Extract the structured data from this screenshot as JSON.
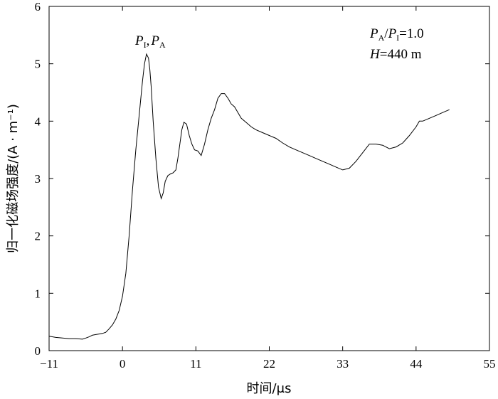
{
  "chart_data": {
    "type": "line",
    "xlabel": "时间/μs",
    "ylabel": "归一化磁场强度/(A · m⁻¹)",
    "xlim": [
      -11,
      55
    ],
    "ylim": [
      0,
      6
    ],
    "xticks": [
      -11,
      0,
      11,
      22,
      33,
      44,
      55
    ],
    "yticks": [
      0,
      1,
      2,
      3,
      4,
      5,
      6
    ],
    "xtick_labels": [
      "−11",
      "0",
      "11",
      "22",
      "33",
      "44",
      "55"
    ],
    "ytick_labels": [
      "0",
      "1",
      "2",
      "3",
      "4",
      "5",
      "6"
    ],
    "grid": false,
    "annotations": {
      "peak": {
        "var1": "P",
        "sub1": "I",
        "sep": ",",
        "var2": "P",
        "sub2": "A",
        "x": 4.0,
        "y": 5.15
      },
      "ratio": {
        "var1": "P",
        "sub1": "A",
        "slash": "/",
        "var2": "P",
        "sub2": "I",
        "value": "=1.0"
      },
      "height": {
        "var": "H",
        "value": "=440 m"
      }
    },
    "series": [
      {
        "color": "#000000",
        "x": [
          -11.0,
          -10.0,
          -9.0,
          -8.0,
          -7.0,
          -6.0,
          -5.5,
          -5.0,
          -4.5,
          -4.0,
          -3.5,
          -3.0,
          -2.5,
          -2.0,
          -1.5,
          -1.0,
          -0.5,
          0.0,
          0.5,
          1.0,
          1.5,
          2.0,
          2.5,
          3.0,
          3.3,
          3.6,
          3.9,
          4.1,
          4.3,
          4.6,
          5.0,
          5.4,
          5.8,
          6.1,
          6.4,
          6.8,
          7.2,
          7.6,
          8.0,
          8.3,
          8.6,
          8.9,
          9.2,
          9.6,
          10.0,
          10.4,
          10.8,
          11.3,
          11.8,
          12.3,
          12.8,
          13.3,
          13.8,
          14.3,
          14.8,
          15.3,
          15.8,
          16.3,
          16.8,
          17.3,
          17.8,
          18.5,
          19.3,
          20.0,
          21.0,
          22.0,
          23.0,
          24.0,
          25.0,
          26.0,
          27.0,
          28.0,
          29.0,
          30.0,
          31.0,
          32.0,
          33.0,
          34.0,
          35.0,
          36.0,
          37.0,
          38.0,
          39.0,
          40.0,
          41.0,
          42.0,
          43.0,
          44.0,
          44.5,
          45.0,
          46.0,
          47.0,
          48.0,
          49.0
        ],
        "y": [
          0.25,
          0.23,
          0.22,
          0.21,
          0.21,
          0.2,
          0.22,
          0.24,
          0.27,
          0.28,
          0.29,
          0.3,
          0.32,
          0.38,
          0.45,
          0.55,
          0.7,
          0.95,
          1.35,
          2.0,
          2.8,
          3.5,
          4.1,
          4.7,
          5.0,
          5.17,
          5.1,
          4.9,
          4.6,
          4.0,
          3.35,
          2.85,
          2.65,
          2.75,
          2.95,
          3.05,
          3.08,
          3.1,
          3.15,
          3.35,
          3.6,
          3.85,
          3.98,
          3.95,
          3.75,
          3.6,
          3.5,
          3.48,
          3.4,
          3.6,
          3.85,
          4.05,
          4.2,
          4.4,
          4.48,
          4.48,
          4.4,
          4.3,
          4.25,
          4.15,
          4.05,
          3.98,
          3.9,
          3.85,
          3.8,
          3.75,
          3.7,
          3.62,
          3.55,
          3.5,
          3.45,
          3.4,
          3.35,
          3.3,
          3.25,
          3.2,
          3.15,
          3.18,
          3.3,
          3.45,
          3.6,
          3.6,
          3.58,
          3.52,
          3.55,
          3.62,
          3.75,
          3.9,
          4.0,
          4.0,
          4.05,
          4.1,
          4.15,
          4.2
        ]
      }
    ]
  }
}
